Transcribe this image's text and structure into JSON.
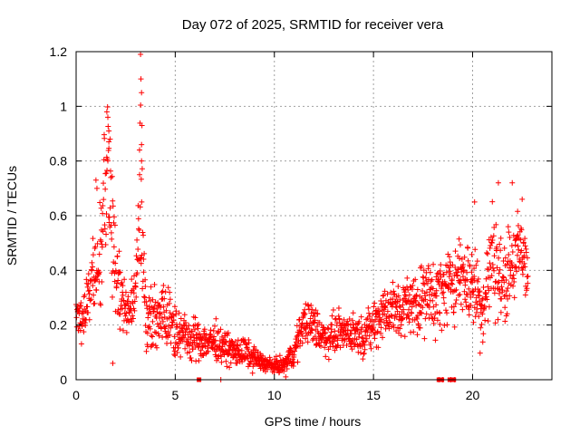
{
  "chart_data": {
    "type": "scatter",
    "title": "Day 072 of 2025, SRMTID for receiver vera",
    "xlabel": "GPS time / hours",
    "ylabel": "SRMTID / TECUs",
    "xlim": [
      0,
      24
    ],
    "ylim": [
      0,
      1.2
    ],
    "x_ticks": [
      0,
      5,
      10,
      15,
      20
    ],
    "x_tick_labels": [
      "0",
      "5",
      "10",
      "15",
      "20"
    ],
    "y_ticks": [
      0,
      0.2,
      0.4,
      0.6,
      0.8,
      1.0,
      1.2
    ],
    "y_tick_labels": [
      "0",
      "0.2",
      "0.4",
      "0.6",
      "0.8",
      "1",
      "1.2"
    ],
    "grid": true,
    "marker": "plus",
    "color": "#ff0000",
    "series_envelope": {
      "name": "SRMTID",
      "x_hours": [
        0.0,
        0.3,
        0.6,
        0.9,
        1.2,
        1.5,
        1.6,
        1.8,
        2.2,
        2.6,
        3.0,
        3.25,
        3.4,
        3.6,
        4.0,
        4.5,
        5.0,
        5.5,
        6.0,
        6.5,
        7.0,
        7.5,
        8.0,
        8.5,
        9.0,
        9.5,
        10.0,
        10.5,
        11.0,
        11.5,
        12.0,
        12.5,
        13.0,
        13.5,
        14.0,
        14.5,
        15.0,
        15.5,
        16.0,
        16.5,
        17.0,
        17.5,
        18.0,
        18.5,
        19.0,
        19.5,
        20.0,
        20.5,
        21.0,
        21.5,
        22.0,
        22.5,
        22.8
      ],
      "typical_srmtid": [
        0.25,
        0.22,
        0.3,
        0.38,
        0.45,
        0.7,
        0.85,
        0.55,
        0.3,
        0.25,
        0.32,
        0.7,
        0.45,
        0.2,
        0.22,
        0.25,
        0.18,
        0.16,
        0.15,
        0.14,
        0.14,
        0.12,
        0.1,
        0.1,
        0.08,
        0.06,
        0.05,
        0.05,
        0.1,
        0.22,
        0.2,
        0.15,
        0.17,
        0.18,
        0.17,
        0.16,
        0.2,
        0.25,
        0.25,
        0.26,
        0.28,
        0.3,
        0.3,
        0.32,
        0.36,
        0.38,
        0.35,
        0.25,
        0.45,
        0.35,
        0.42,
        0.48,
        0.4
      ],
      "spread": [
        0.06,
        0.05,
        0.08,
        0.12,
        0.14,
        0.2,
        0.15,
        0.2,
        0.1,
        0.06,
        0.06,
        0.25,
        0.15,
        0.08,
        0.08,
        0.09,
        0.06,
        0.05,
        0.05,
        0.05,
        0.05,
        0.04,
        0.04,
        0.04,
        0.03,
        0.02,
        0.02,
        0.03,
        0.04,
        0.05,
        0.06,
        0.05,
        0.05,
        0.05,
        0.05,
        0.05,
        0.06,
        0.08,
        0.08,
        0.08,
        0.08,
        0.09,
        0.1,
        0.1,
        0.1,
        0.1,
        0.12,
        0.1,
        0.15,
        0.1,
        0.12,
        0.12,
        0.1
      ]
    },
    "notable_points": [
      {
        "x": 3.25,
        "y": 1.19
      },
      {
        "x": 3.27,
        "y": 1.1
      },
      {
        "x": 3.3,
        "y": 1.05
      },
      {
        "x": 3.32,
        "y": 0.93
      },
      {
        "x": 1.55,
        "y": 0.98
      },
      {
        "x": 1.6,
        "y": 0.96
      },
      {
        "x": 1.65,
        "y": 0.91
      },
      {
        "x": 1.65,
        "y": 0.87
      },
      {
        "x": 1.0,
        "y": 0.73
      },
      {
        "x": 1.05,
        "y": 0.7
      },
      {
        "x": 3.3,
        "y": 0.86
      },
      {
        "x": 3.3,
        "y": 0.8
      },
      {
        "x": 3.2,
        "y": 0.75
      },
      {
        "x": 21.3,
        "y": 0.72
      },
      {
        "x": 22.0,
        "y": 0.72
      },
      {
        "x": 20.1,
        "y": 0.65
      },
      {
        "x": 22.5,
        "y": 0.66
      },
      {
        "x": 1.85,
        "y": 0.06
      },
      {
        "x": 7.3,
        "y": 0.0
      },
      {
        "x": 18.3,
        "y": 0.0
      },
      {
        "x": 18.5,
        "y": 0.0
      },
      {
        "x": 18.9,
        "y": 0.0
      },
      {
        "x": 19.1,
        "y": 0.0
      }
    ],
    "zero_markers": [
      {
        "x": 6.2,
        "y": 0.0
      },
      {
        "x": 18.3,
        "y": 0.0
      },
      {
        "x": 18.45,
        "y": 0.0
      },
      {
        "x": 18.85,
        "y": 0.0
      },
      {
        "x": 19.05,
        "y": 0.0
      }
    ]
  }
}
